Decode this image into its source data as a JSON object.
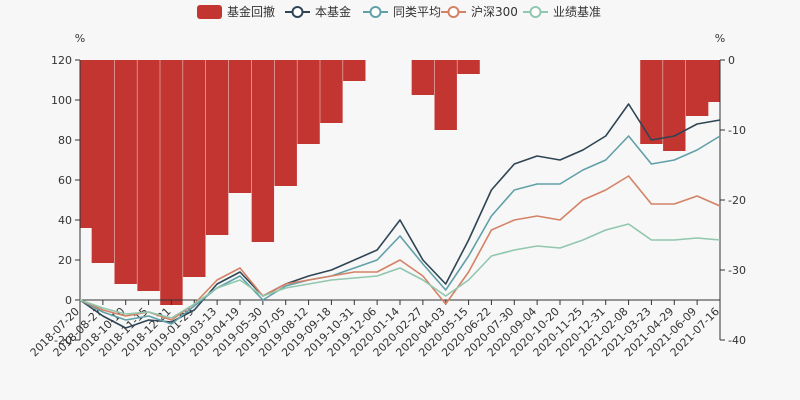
{
  "chart_data": {
    "type": "line",
    "left_axis": {
      "unit": "%",
      "min": -20,
      "max": 120,
      "ticks": [
        -20,
        0,
        20,
        40,
        60,
        80,
        100,
        120
      ]
    },
    "right_axis": {
      "unit": "%",
      "min": -40,
      "max": 0,
      "ticks": [
        -40,
        -30,
        -20,
        -10,
        0
      ]
    },
    "categories": [
      "2018-07-20",
      "2018-08-27",
      "2018-10-10",
      "2018-11-15",
      "2018-12-21",
      "2019-01-29",
      "2019-03-13",
      "2019-04-19",
      "2019-05-30",
      "2019-07-05",
      "2019-08-12",
      "2019-09-18",
      "2019-10-31",
      "2019-12-06",
      "2020-01-14",
      "2020-02-27",
      "2020-04-03",
      "2020-05-15",
      "2020-06-22",
      "2020-07-30",
      "2020-09-04",
      "2020-10-20",
      "2020-11-25",
      "2020-12-31",
      "2021-02-08",
      "2021-03-23",
      "2021-04-29",
      "2021-06-09",
      "2021-07-16"
    ],
    "legend": [
      {
        "key": "drawdown",
        "label": "基金回撤",
        "color": "#c23531",
        "kind": "bar"
      },
      {
        "key": "fund",
        "label": "本基金",
        "color": "#2f4554",
        "kind": "line"
      },
      {
        "key": "peer",
        "label": "同类平均",
        "color": "#61a0a8",
        "kind": "line"
      },
      {
        "key": "csi300",
        "label": "沪深300",
        "color": "#d48265",
        "kind": "line"
      },
      {
        "key": "benchmark",
        "label": "业绩基准",
        "color": "#91c7ae",
        "kind": "line"
      }
    ],
    "series": [
      {
        "name": "基金回撤",
        "axis": "right",
        "values": [
          -24,
          -29,
          -32,
          -33,
          -35,
          -31,
          -25,
          -19,
          -26,
          -18,
          -12,
          -9,
          -3,
          0,
          0,
          -5,
          -10,
          -2,
          0,
          0,
          0,
          0,
          0,
          0,
          0,
          -12,
          -13,
          -8,
          -6
        ]
      },
      {
        "name": "本基金",
        "axis": "left",
        "values": [
          0,
          -8,
          -14,
          -10,
          -11,
          -5,
          8,
          14,
          2,
          8,
          12,
          15,
          20,
          25,
          40,
          20,
          8,
          30,
          55,
          68,
          72,
          70,
          75,
          82,
          98,
          80,
          82,
          88,
          90
        ]
      },
      {
        "name": "同类平均",
        "axis": "left",
        "values": [
          0,
          -6,
          -10,
          -8,
          -12,
          -3,
          6,
          12,
          0,
          7,
          10,
          12,
          16,
          20,
          32,
          18,
          5,
          22,
          42,
          55,
          58,
          58,
          65,
          70,
          82,
          68,
          70,
          75,
          82
        ]
      },
      {
        "name": "沪深300",
        "axis": "left",
        "values": [
          0,
          -5,
          -8,
          -6,
          -10,
          -2,
          10,
          16,
          2,
          8,
          10,
          12,
          14,
          14,
          20,
          12,
          -2,
          14,
          35,
          40,
          42,
          40,
          50,
          55,
          62,
          48,
          48,
          52,
          47
        ]
      },
      {
        "name": "业绩基准",
        "axis": "left",
        "values": [
          0,
          -4,
          -7,
          -6,
          -9,
          -2,
          6,
          10,
          2,
          6,
          8,
          10,
          11,
          12,
          16,
          10,
          2,
          10,
          22,
          25,
          27,
          26,
          30,
          35,
          38,
          30,
          30,
          31,
          30
        ]
      }
    ]
  }
}
